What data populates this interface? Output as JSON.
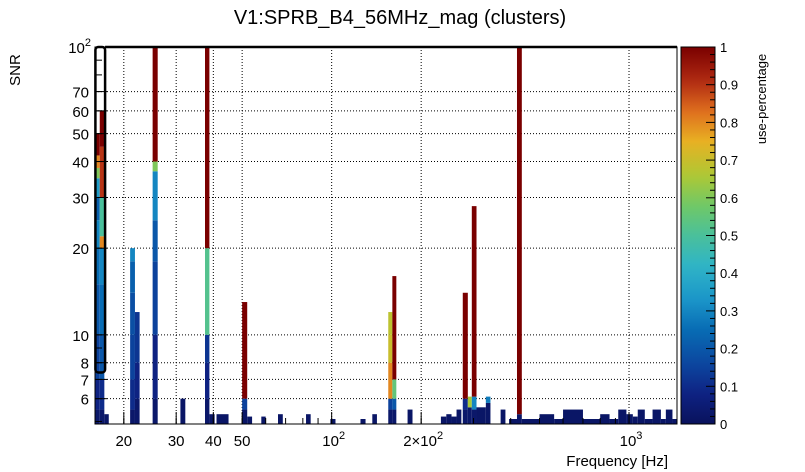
{
  "chart_data": {
    "type": "heatmap",
    "title": "V1:SPRB_B4_56MHz_mag (clusters)",
    "xlabel": "Frequency [Hz]",
    "ylabel": "SNR",
    "zlabel": "use-percentage",
    "x_scale": "log",
    "y_scale": "log",
    "xlim": [
      16,
      1450
    ],
    "ylim": [
      4.9,
      100
    ],
    "zlim": [
      0,
      1
    ],
    "grid": true,
    "x_ticks": [
      {
        "value": 20,
        "label": "20"
      },
      {
        "value": 30,
        "label": "30"
      },
      {
        "value": 40,
        "label": "40"
      },
      {
        "value": 50,
        "label": "50"
      },
      {
        "value": 100,
        "label": "10",
        "exp": "2"
      },
      {
        "value": 200,
        "label": "2×10",
        "exp": "2"
      },
      {
        "value": 1000,
        "label": "10",
        "exp": "3"
      }
    ],
    "y_ticks": [
      {
        "value": 6,
        "label": "6"
      },
      {
        "value": 7,
        "label": "7"
      },
      {
        "value": 8,
        "label": "8"
      },
      {
        "value": 10,
        "label": "10"
      },
      {
        "value": 20,
        "label": "20"
      },
      {
        "value": 30,
        "label": "30"
      },
      {
        "value": 40,
        "label": "40"
      },
      {
        "value": 50,
        "label": "50"
      },
      {
        "value": 60,
        "label": "60"
      },
      {
        "value": 70,
        "label": "70"
      },
      {
        "value": 100,
        "label": "10",
        "exp": "2"
      }
    ],
    "z_ticks": [
      {
        "value": 0,
        "label": "0"
      },
      {
        "value": 0.1,
        "label": "0.1"
      },
      {
        "value": 0.2,
        "label": "0.2"
      },
      {
        "value": 0.3,
        "label": "0.3"
      },
      {
        "value": 0.4,
        "label": "0.4"
      },
      {
        "value": 0.5,
        "label": "0.5"
      },
      {
        "value": 0.6,
        "label": "0.6"
      },
      {
        "value": 0.7,
        "label": "0.7"
      },
      {
        "value": 0.8,
        "label": "0.8"
      },
      {
        "value": 0.9,
        "label": "0.9"
      },
      {
        "value": 1,
        "label": "1"
      }
    ],
    "columns": [
      {
        "f": [
          16.0,
          16.6
        ],
        "cells": [
          [
            4.9,
            5.5,
            0.03
          ],
          [
            5.5,
            7,
            0.08
          ],
          [
            7,
            10,
            0.15
          ],
          [
            10,
            15,
            0.2
          ],
          [
            15,
            20,
            0.25
          ],
          [
            20,
            25,
            0.3
          ],
          [
            25,
            30,
            0.22
          ],
          [
            30,
            35,
            0.35
          ],
          [
            35,
            38,
            0.6
          ],
          [
            38,
            42,
            0.8
          ],
          [
            42,
            50,
            1.0
          ]
        ]
      },
      {
        "f": [
          16.6,
          17.2
        ],
        "cells": [
          [
            4.9,
            5.5,
            0.03
          ],
          [
            5.5,
            7,
            0.1
          ],
          [
            7,
            10,
            0.2
          ],
          [
            10,
            15,
            0.25
          ],
          [
            15,
            20,
            0.3
          ],
          [
            20,
            22,
            0.8
          ],
          [
            22,
            30,
            0.5
          ],
          [
            30,
            45,
            0.9
          ],
          [
            45,
            60,
            1.0
          ]
        ]
      },
      {
        "f": [
          17.2,
          17.8
        ],
        "cells": [
          [
            4.9,
            5.3,
            0.02
          ]
        ]
      },
      {
        "f": [
          21.0,
          21.8
        ],
        "cells": [
          [
            4.9,
            5.5,
            0.03
          ],
          [
            5.5,
            7,
            0.1
          ],
          [
            7,
            10,
            0.15
          ],
          [
            10,
            14,
            0.18
          ],
          [
            14,
            18,
            0.22
          ],
          [
            18,
            20,
            0.3
          ]
        ]
      },
      {
        "f": [
          21.8,
          22.6
        ],
        "cells": [
          [
            4.9,
            6,
            0.03
          ],
          [
            6,
            8,
            0.08
          ],
          [
            8,
            12,
            0.12
          ]
        ]
      },
      {
        "f": [
          25.0,
          26.0
        ],
        "cells": [
          [
            4.9,
            6,
            0.03
          ],
          [
            6,
            10,
            0.08
          ],
          [
            10,
            18,
            0.15
          ],
          [
            18,
            25,
            0.2
          ],
          [
            25,
            37,
            0.3
          ],
          [
            37,
            40,
            0.6
          ],
          [
            40,
            100,
            1.0
          ]
        ]
      },
      {
        "f": [
          31.0,
          32.2
        ],
        "cells": [
          [
            4.9,
            6,
            0.02
          ]
        ]
      },
      {
        "f": [
          37.5,
          38.8
        ],
        "cells": [
          [
            4.9,
            6,
            0.03
          ],
          [
            6,
            8,
            0.08
          ],
          [
            8,
            10,
            0.12
          ],
          [
            10,
            20,
            0.52
          ],
          [
            20,
            100,
            1.0
          ]
        ]
      },
      {
        "f": [
          38.8,
          40.4
        ],
        "cells": [
          [
            4.9,
            5.3,
            0.02
          ]
        ]
      },
      {
        "f": [
          41.0,
          45.0
        ],
        "cells": [
          [
            4.9,
            5.3,
            0.02
          ]
        ]
      },
      {
        "f": [
          50.0,
          52.0
        ],
        "cells": [
          [
            4.9,
            5.5,
            0.02
          ],
          [
            5.5,
            6,
            0.15
          ],
          [
            6,
            13,
            1.0
          ]
        ]
      },
      {
        "f": [
          52.0,
          54.0
        ],
        "cells": [
          [
            4.9,
            5.2,
            0.02
          ]
        ]
      },
      {
        "f": [
          58.0,
          60.0
        ],
        "cells": [
          [
            4.9,
            5.2,
            0.02
          ]
        ]
      },
      {
        "f": [
          66.0,
          68.5
        ],
        "cells": [
          [
            4.9,
            5.3,
            0.02
          ]
        ]
      },
      {
        "f": [
          82.0,
          85.0
        ],
        "cells": [
          [
            4.9,
            5.3,
            0.02
          ]
        ]
      },
      {
        "f": [
          99.0,
          103.0
        ],
        "cells": [
          [
            4.9,
            5.1,
            0.02
          ]
        ]
      },
      {
        "f": [
          125.0,
          130.0
        ],
        "cells": [
          [
            4.9,
            5.1,
            0.02
          ]
        ]
      },
      {
        "f": [
          137.0,
          142.0
        ],
        "cells": [
          [
            4.9,
            5.3,
            0.02
          ]
        ]
      },
      {
        "f": [
          155.0,
          160.0
        ],
        "cells": [
          [
            4.9,
            5.5,
            0.03
          ],
          [
            5.5,
            6,
            0.15
          ],
          [
            6,
            8,
            0.8
          ],
          [
            8,
            10,
            0.7
          ],
          [
            10,
            12,
            0.68
          ]
        ]
      },
      {
        "f": [
          160.0,
          165.0
        ],
        "cells": [
          [
            4.9,
            5.5,
            0.03
          ],
          [
            5.5,
            6,
            0.2
          ],
          [
            6,
            7,
            0.55
          ],
          [
            7,
            16,
            1.0
          ]
        ]
      },
      {
        "f": [
          180.0,
          187.0
        ],
        "cells": [
          [
            4.9,
            5.5,
            0.02
          ]
        ]
      },
      {
        "f": [
          233.0,
          243.0
        ],
        "cells": [
          [
            4.9,
            5.2,
            0.02
          ]
        ]
      },
      {
        "f": [
          243.0,
          253.0
        ],
        "cells": [
          [
            4.9,
            5.3,
            0.02
          ]
        ]
      },
      {
        "f": [
          253.0,
          263.0
        ],
        "cells": [
          [
            4.9,
            5.2,
            0.02
          ]
        ]
      },
      {
        "f": [
          263.0,
          273.0
        ],
        "cells": [
          [
            4.9,
            5.5,
            0.02
          ]
        ]
      },
      {
        "f": [
          276.0,
          287.0
        ],
        "cells": [
          [
            4.9,
            5.5,
            0.03
          ],
          [
            5.5,
            6,
            0.1
          ],
          [
            6,
            14,
            1.0
          ]
        ]
      },
      {
        "f": [
          287.0,
          296.0
        ],
        "cells": [
          [
            4.9,
            5.6,
            0.03
          ],
          [
            5.6,
            6.1,
            0.65
          ]
        ]
      },
      {
        "f": [
          296.0,
          307.0
        ],
        "cells": [
          [
            4.9,
            5.5,
            0.03
          ],
          [
            5.5,
            6.1,
            0.3
          ],
          [
            6.1,
            28,
            1.0
          ]
        ]
      },
      {
        "f": [
          307.0,
          330.0
        ],
        "cells": [
          [
            4.9,
            5.6,
            0.02
          ]
        ]
      },
      {
        "f": [
          330.0,
          342.0
        ],
        "cells": [
          [
            4.9,
            5.8,
            0.02
          ],
          [
            5.8,
            6.1,
            0.28
          ]
        ]
      },
      {
        "f": [
          370.0,
          384.0
        ],
        "cells": [
          [
            4.9,
            5.5,
            0.02
          ]
        ]
      },
      {
        "f": [
          395.0,
          420.0
        ],
        "cells": [
          [
            4.9,
            5.1,
            0.02
          ]
        ]
      },
      {
        "f": [
          420.0,
          436.0
        ],
        "cells": [
          [
            4.9,
            5.3,
            0.02
          ],
          [
            5.3,
            100,
            1.0
          ]
        ]
      },
      {
        "f": [
          436.0,
          500.0
        ],
        "cells": [
          [
            4.9,
            5.1,
            0.02
          ]
        ]
      },
      {
        "f": [
          500.0,
          560.0
        ],
        "cells": [
          [
            4.9,
            5.3,
            0.02
          ]
        ]
      },
      {
        "f": [
          560.0,
          600.0
        ],
        "cells": [
          [
            4.9,
            5.1,
            0.02
          ]
        ]
      },
      {
        "f": [
          600.0,
          700.0
        ],
        "cells": [
          [
            4.9,
            5.5,
            0.02
          ]
        ]
      },
      {
        "f": [
          700.0,
          800.0
        ],
        "cells": [
          [
            4.9,
            5.1,
            0.02
          ]
        ]
      },
      {
        "f": [
          800.0,
          860.0
        ],
        "cells": [
          [
            4.9,
            5.3,
            0.02
          ]
        ]
      },
      {
        "f": [
          860.0,
          920.0
        ],
        "cells": [
          [
            4.9,
            5.1,
            0.02
          ]
        ]
      },
      {
        "f": [
          920.0,
          980.0
        ],
        "cells": [
          [
            4.9,
            5.5,
            0.02
          ]
        ]
      },
      {
        "f": [
          980.0,
          1030.0
        ],
        "cells": [
          [
            4.9,
            5.3,
            0.02
          ]
        ]
      },
      {
        "f": [
          1030.0,
          1070.0
        ],
        "cells": [
          [
            4.9,
            5.2,
            0.02
          ]
        ]
      },
      {
        "f": [
          1070.0,
          1130.0
        ],
        "cells": [
          [
            4.9,
            5.5,
            0.02
          ]
        ]
      },
      {
        "f": [
          1130.0,
          1200.0
        ],
        "cells": [
          [
            4.9,
            5.1,
            0.02
          ]
        ]
      },
      {
        "f": [
          1200.0,
          1280.0
        ],
        "cells": [
          [
            4.9,
            5.5,
            0.02
          ]
        ]
      },
      {
        "f": [
          1280.0,
          1330.0
        ],
        "cells": [
          [
            4.9,
            5.1,
            0.02
          ]
        ]
      },
      {
        "f": [
          1330.0,
          1400.0
        ],
        "cells": [
          [
            4.9,
            5.5,
            0.02
          ]
        ]
      },
      {
        "f": [
          1400.0,
          1450.0
        ],
        "cells": [
          [
            4.9,
            5.1,
            0.02
          ]
        ]
      }
    ],
    "highlight_box": {
      "f": [
        16.05,
        17.3
      ],
      "snr": [
        7.4,
        100
      ]
    }
  }
}
